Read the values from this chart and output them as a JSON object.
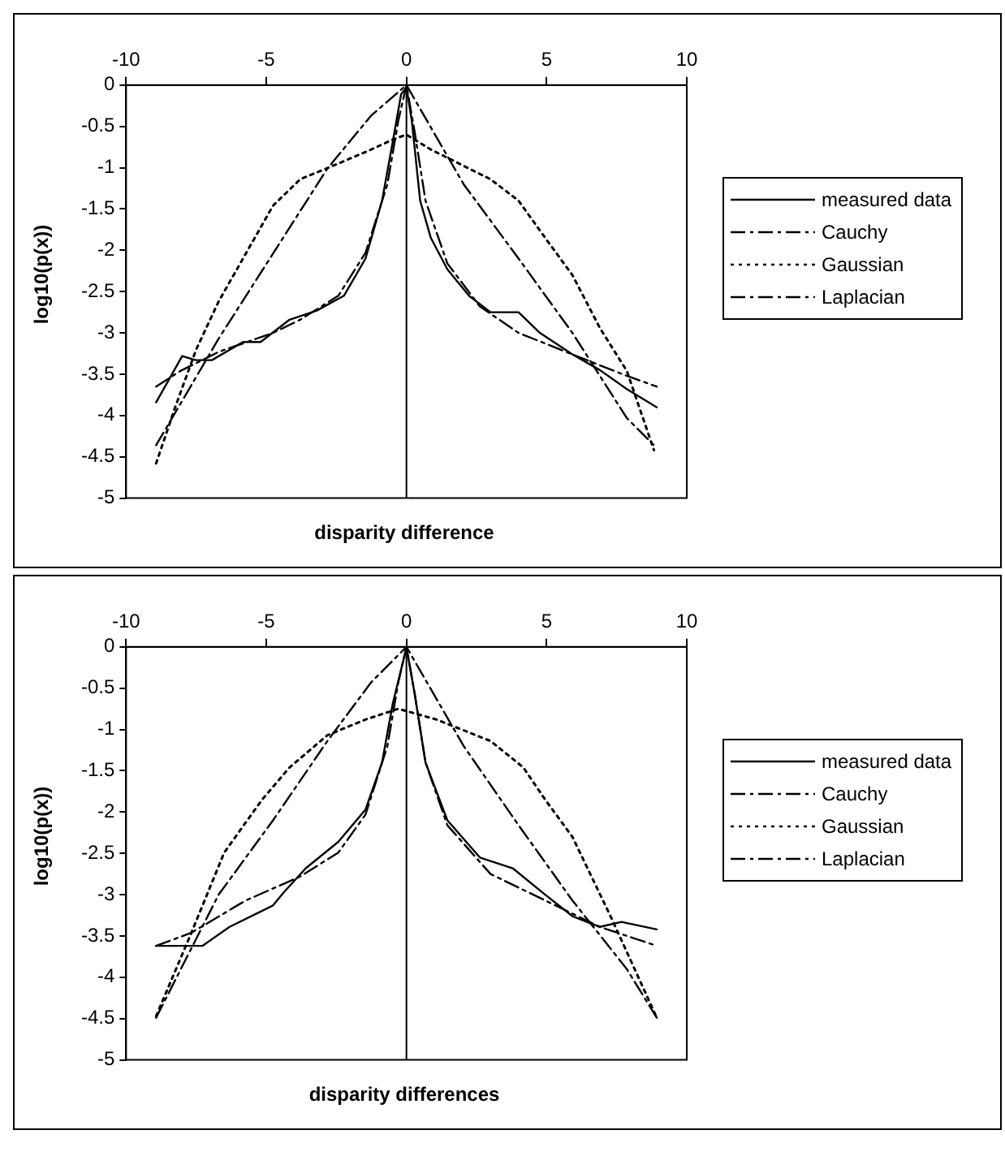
{
  "chart_data": [
    {
      "type": "line",
      "xlabel": "disparity difference",
      "ref_lines": [
        {
          "axis": "x",
          "value": 0
        }
      ],
      "ylabel": "log10(p(x))",
      "xlim": [
        -10,
        10
      ],
      "xticks": [
        -10,
        -5,
        0,
        5,
        10
      ],
      "ylim": [
        -5,
        0
      ],
      "yticks": [
        0,
        -0.5,
        -1,
        -1.5,
        -2,
        -2.5,
        -3,
        -3.5,
        -4,
        -4.5,
        -5
      ],
      "grid": false,
      "legend": "right",
      "marker": "none",
      "series": [
        {
          "name": "measured data",
          "color": "#000000",
          "line_style": "solid",
          "x": [
            -8.93,
            -8.0,
            -7.52,
            -6.94,
            -5.83,
            -5.2,
            -4.17,
            -3.2,
            -2.23,
            -1.46,
            -0.87,
            -0.49,
            -0.19,
            0,
            0.19,
            0.49,
            0.87,
            1.46,
            2.23,
            3.0,
            4.0,
            4.76,
            5.92,
            6.9,
            7.86,
            8.93
          ],
          "values": [
            -3.84,
            -3.28,
            -3.33,
            -3.33,
            -3.11,
            -3.11,
            -2.84,
            -2.73,
            -2.55,
            -2.1,
            -1.4,
            -0.69,
            -0.11,
            -0.03,
            -0.43,
            -1.4,
            -1.85,
            -2.23,
            -2.55,
            -2.75,
            -2.75,
            -3.0,
            -3.26,
            -3.45,
            -3.68,
            -3.9
          ]
        },
        {
          "name": "Cauchy",
          "color": "#000000",
          "line_style": "dashed",
          "x": [
            -8.93,
            -8.06,
            -6.7,
            -4.76,
            -3.79,
            -2.43,
            -1.46,
            -0.68,
            -0.29,
            0,
            0.29,
            0.68,
            1.46,
            2.62,
            4.0,
            5.92,
            7.86,
            8.93
          ],
          "values": [
            -3.65,
            -3.46,
            -3.23,
            -3.0,
            -2.84,
            -2.55,
            -2.03,
            -1.2,
            -0.43,
            0,
            -0.56,
            -1.4,
            -2.16,
            -2.68,
            -3.0,
            -3.26,
            -3.52,
            -3.65
          ]
        },
        {
          "name": "Gaussian",
          "color": "#000000",
          "line_style": "dotted",
          "x": [
            -8.93,
            -8.25,
            -7.5,
            -6.7,
            -5.73,
            -4.76,
            -3.79,
            -2.43,
            -1.26,
            -0.49,
            0,
            0.87,
            3.0,
            4.0,
            4.95,
            5.92,
            6.9,
            7.86,
            8.83
          ],
          "values": [
            -4.58,
            -3.9,
            -3.2,
            -2.62,
            -2.04,
            -1.46,
            -1.14,
            -0.95,
            -0.78,
            -0.66,
            -0.6,
            -0.78,
            -1.14,
            -1.4,
            -1.85,
            -2.3,
            -2.94,
            -3.46,
            -4.42
          ]
        },
        {
          "name": "Laplacian",
          "color": "#000000",
          "line_style": "dashed",
          "x": [
            -8.93,
            -6.7,
            -4.76,
            -2.82,
            -1.26,
            0,
            2.04,
            4.0,
            5.92,
            7.86,
            8.83
          ],
          "values": [
            -4.36,
            -3.07,
            -2.04,
            -1.01,
            -0.37,
            0,
            -1.2,
            -2.1,
            -3.0,
            -4.03,
            -4.36
          ]
        }
      ]
    },
    {
      "type": "line",
      "xlabel": "disparity differences",
      "ref_lines": [
        {
          "axis": "x",
          "value": 0
        }
      ],
      "ylabel": "log10(p(x))",
      "xlim": [
        -10,
        10
      ],
      "xticks": [
        -10,
        -5,
        0,
        5,
        10
      ],
      "ylim": [
        -5,
        0
      ],
      "yticks": [
        0,
        -0.5,
        -1,
        -1.5,
        -2,
        -2.5,
        -3,
        -3.5,
        -4,
        -4.5,
        -5
      ],
      "grid": false,
      "legend": "right",
      "marker": "none",
      "series": [
        {
          "name": "measured data",
          "color": "#000000",
          "line_style": "solid",
          "x": [
            -8.93,
            -7.28,
            -6.31,
            -4.76,
            -4.37,
            -3.59,
            -2.43,
            -1.46,
            -0.87,
            -0.49,
            0,
            0.29,
            0.68,
            1.46,
            2.62,
            3.79,
            4.95,
            5.92,
            6.9,
            7.67,
            8.93
          ],
          "values": [
            -3.62,
            -3.62,
            -3.39,
            -3.13,
            -2.97,
            -2.68,
            -2.36,
            -1.97,
            -1.4,
            -0.69,
            -0.01,
            -0.56,
            -1.4,
            -2.1,
            -2.55,
            -2.68,
            -3.0,
            -3.26,
            -3.39,
            -3.33,
            -3.42
          ]
        },
        {
          "name": "Cauchy",
          "color": "#000000",
          "line_style": "dashed",
          "x": [
            -8.93,
            -7.67,
            -5.73,
            -3.79,
            -2.43,
            -1.46,
            -0.68,
            -0.29,
            0,
            0.29,
            0.68,
            1.46,
            3.0,
            4.95,
            6.9,
            8.93
          ],
          "values": [
            -3.62,
            -3.46,
            -3.07,
            -2.78,
            -2.49,
            -2.03,
            -1.2,
            -0.43,
            0,
            -0.56,
            -1.4,
            -2.16,
            -2.75,
            -3.07,
            -3.39,
            -3.62
          ]
        },
        {
          "name": "Gaussian",
          "color": "#000000",
          "line_style": "dotted",
          "x": [
            -8.93,
            -7.67,
            -6.5,
            -5.15,
            -4.17,
            -2.82,
            -1.46,
            -0.29,
            1.07,
            3.0,
            4.17,
            4.95,
            5.92,
            7.28,
            8.93
          ],
          "values": [
            -4.47,
            -3.46,
            -2.49,
            -1.85,
            -1.46,
            -1.07,
            -0.88,
            -0.75,
            -0.88,
            -1.14,
            -1.46,
            -1.85,
            -2.3,
            -3.26,
            -4.49
          ]
        },
        {
          "name": "Laplacian",
          "color": "#000000",
          "line_style": "dashed",
          "x": [
            -8.93,
            -6.7,
            -4.76,
            -2.82,
            -1.26,
            0,
            2.04,
            4.0,
            5.92,
            7.86,
            8.93
          ],
          "values": [
            -4.49,
            -3.0,
            -2.1,
            -1.14,
            -0.43,
            0,
            -1.2,
            -2.16,
            -3.07,
            -3.9,
            -4.49
          ]
        }
      ]
    }
  ]
}
